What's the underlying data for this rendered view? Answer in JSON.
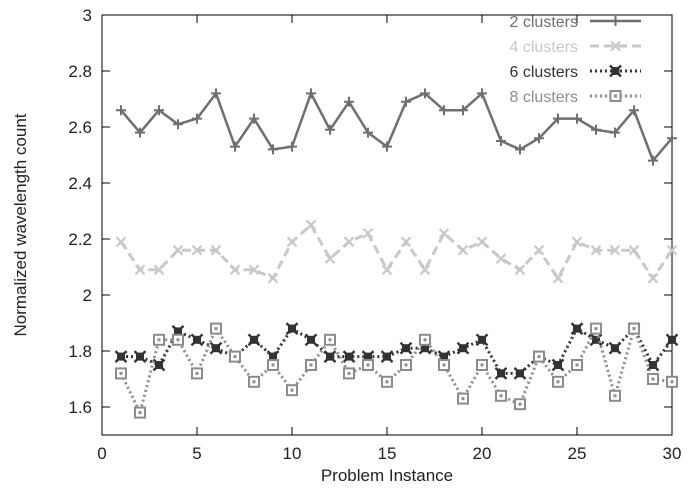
{
  "chart_data": {
    "type": "line",
    "xlabel": "Problem Instance",
    "ylabel": "Normalized wavelength count",
    "xlim": [
      0,
      30
    ],
    "ylim": [
      1.5,
      3.0
    ],
    "xticks": [
      0,
      5,
      10,
      15,
      20,
      25,
      30
    ],
    "yticks": [
      1.6,
      1.8,
      2.0,
      2.2,
      2.4,
      2.6,
      2.8,
      3.0
    ],
    "xtick_labels": [
      "0",
      "5",
      "10",
      "15",
      "20",
      "25",
      "30"
    ],
    "ytick_labels": [
      "1.6",
      "1.8",
      "2",
      "2.2",
      "2.4",
      "2.6",
      "2.8",
      "3"
    ],
    "grid": false,
    "legend_position": "top-right",
    "x": [
      1,
      2,
      3,
      4,
      5,
      6,
      7,
      8,
      9,
      10,
      11,
      12,
      13,
      14,
      15,
      16,
      17,
      18,
      19,
      20,
      21,
      22,
      23,
      24,
      25,
      26,
      27,
      28,
      29,
      30
    ],
    "series": [
      {
        "name": "2 clusters",
        "color": "#6f6f6f",
        "line_style": "solid",
        "marker": "plus",
        "values": [
          2.66,
          2.58,
          2.66,
          2.61,
          2.63,
          2.72,
          2.53,
          2.63,
          2.52,
          2.53,
          2.72,
          2.59,
          2.69,
          2.58,
          2.53,
          2.69,
          2.72,
          2.66,
          2.66,
          2.72,
          2.55,
          2.52,
          2.56,
          2.63,
          2.63,
          2.59,
          2.58,
          2.66,
          2.48,
          2.56
        ]
      },
      {
        "name": "4 clusters",
        "color": "#c8c8c8",
        "line_style": "dashed",
        "marker": "cross",
        "values": [
          2.19,
          2.09,
          2.09,
          2.16,
          2.16,
          2.16,
          2.09,
          2.09,
          2.06,
          2.19,
          2.25,
          2.13,
          2.19,
          2.22,
          2.09,
          2.19,
          2.09,
          2.22,
          2.16,
          2.19,
          2.13,
          2.09,
          2.16,
          2.06,
          2.19,
          2.16,
          2.16,
          2.16,
          2.06,
          2.16
        ]
      },
      {
        "name": "6 clusters",
        "color": "#333333",
        "line_style": "dotted",
        "marker": "filled-x",
        "values": [
          1.78,
          1.78,
          1.75,
          1.87,
          1.84,
          1.81,
          1.78,
          1.84,
          1.78,
          1.88,
          1.84,
          1.78,
          1.78,
          1.78,
          1.78,
          1.81,
          1.81,
          1.78,
          1.81,
          1.84,
          1.72,
          1.72,
          1.78,
          1.75,
          1.88,
          1.84,
          1.81,
          1.88,
          1.75,
          1.84
        ]
      },
      {
        "name": "8 clusters",
        "color": "#8c8c8c",
        "line_style": "dotted",
        "marker": "open-square",
        "values": [
          1.72,
          1.58,
          1.84,
          1.84,
          1.72,
          1.88,
          1.78,
          1.69,
          1.75,
          1.66,
          1.75,
          1.84,
          1.72,
          1.75,
          1.69,
          1.75,
          1.84,
          1.75,
          1.63,
          1.75,
          1.64,
          1.61,
          1.78,
          1.69,
          1.75,
          1.88,
          1.64,
          1.88,
          1.7,
          1.69
        ]
      }
    ]
  }
}
